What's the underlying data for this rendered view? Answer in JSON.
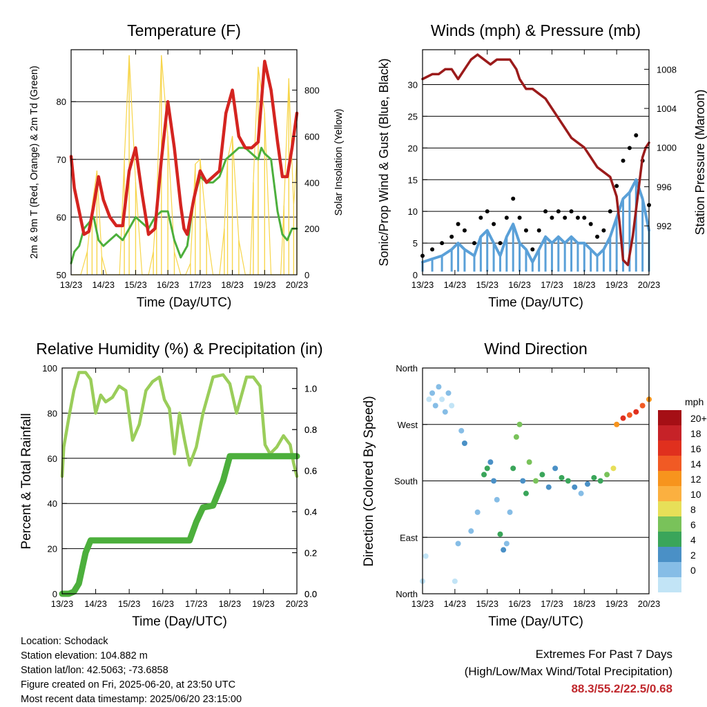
{
  "x_ticks": [
    "13/23",
    "14/23",
    "15/23",
    "16/23",
    "17/23",
    "18/23",
    "19/23",
    "20/23"
  ],
  "xlabel": "Time (Day/UTC)",
  "colors": {
    "temp": "#d42420",
    "dewpoint": "#4caf3c",
    "solar": "#f7d54a",
    "pressure": "#9b1b1b",
    "sonic": "#5aa0d8",
    "gust": "#000000",
    "rh": "#9acd5a",
    "rain": "#4caf3c"
  },
  "chart_data": [
    {
      "type": "line",
      "title": "Temperature (F)",
      "xlabel": "Time (Day/UTC)",
      "ylabel": "2m & 9m T (Red, Orange) & 2m Td (Green)",
      "y2label": "Solar Insolation (Yellow)",
      "yticks": [
        "50",
        "60",
        "70",
        "80"
      ],
      "y2ticks": [
        "0",
        "200",
        "400",
        "600",
        "800"
      ],
      "ylim": [
        50,
        89
      ],
      "y2lim": [
        0,
        975
      ],
      "x": [
        0,
        0.1,
        0.25,
        0.4,
        0.55,
        0.7,
        0.85,
        1.0,
        1.2,
        1.4,
        1.6,
        1.8,
        2.0,
        2.2,
        2.4,
        2.6,
        2.8,
        3.0,
        3.2,
        3.4,
        3.5,
        3.6,
        3.8,
        4.0,
        4.2,
        4.4,
        4.6,
        4.8,
        5.0,
        5.2,
        5.4,
        5.6,
        5.8,
        5.9,
        6.0,
        6.2,
        6.4,
        6.55,
        6.7,
        6.85,
        7.0
      ],
      "series": [
        {
          "values": [
            70.5,
            65,
            61,
            57,
            57.5,
            62,
            67,
            63,
            60,
            58.5,
            58.5,
            68,
            72,
            64,
            57,
            58,
            70,
            80,
            72,
            62,
            58,
            57,
            63,
            68,
            66,
            67,
            68,
            78,
            82,
            74,
            72,
            72,
            73,
            80,
            87,
            82,
            73,
            67,
            67,
            72,
            78
          ]
        },
        {
          "values": [
            52,
            54,
            55,
            58,
            59,
            60,
            56,
            55,
            56,
            57,
            56,
            58,
            60,
            59,
            58,
            60,
            61,
            61,
            56,
            53,
            54,
            55,
            63,
            67,
            66,
            66,
            67,
            70,
            71,
            72,
            72,
            71,
            70,
            72,
            71,
            70,
            61,
            57,
            56,
            58,
            58
          ]
        }
      ],
      "solar": {
        "x": [
          0,
          0.3,
          0.5,
          0.65,
          0.8,
          0.95,
          1.1,
          1.3,
          1.5,
          1.65,
          1.8,
          2.0,
          2.2,
          2.4,
          2.55,
          2.65,
          2.8,
          3.0,
          3.2,
          3.4,
          3.55,
          3.7,
          3.85,
          4.0,
          4.2,
          4.4,
          4.6,
          4.75,
          4.85,
          5.0,
          5.2,
          5.4,
          5.55,
          5.65,
          5.8,
          6.0,
          6.2,
          6.35,
          6.5,
          6.6,
          6.75,
          6.9,
          7.0
        ],
        "values": [
          0,
          0,
          100,
          300,
          450,
          80,
          0,
          0,
          0,
          500,
          950,
          400,
          0,
          0,
          100,
          300,
          950,
          600,
          100,
          0,
          0,
          50,
          480,
          500,
          200,
          0,
          0,
          200,
          500,
          600,
          150,
          0,
          0,
          400,
          900,
          700,
          0,
          0,
          0,
          300,
          850,
          300,
          500
        ]
      }
    },
    {
      "type": "line",
      "title": "Winds (mph) & Pressure (mb)",
      "xlabel": "Time (Day/UTC)",
      "ylabel": "Sonic/Prop Wind & Gust (Blue, Black)",
      "y2label": "Station Pressure (Maroon)",
      "yticks": [
        "0",
        "5",
        "10",
        "15",
        "20",
        "25",
        "30"
      ],
      "y2ticks": [
        "992",
        "996",
        "1000",
        "1004",
        "1008"
      ],
      "ylim": [
        0,
        35.5
      ],
      "y2lim": [
        987,
        1010
      ],
      "x": [
        0,
        0.3,
        0.6,
        0.9,
        1.1,
        1.3,
        1.6,
        1.8,
        2.0,
        2.2,
        2.4,
        2.6,
        2.8,
        3.0,
        3.2,
        3.4,
        3.6,
        3.8,
        4.0,
        4.2,
        4.4,
        4.6,
        4.8,
        5.0,
        5.2,
        5.4,
        5.6,
        5.8,
        6.0,
        6.2,
        6.4,
        6.6,
        6.8,
        7.0
      ],
      "series": [
        {
          "values": [
            2,
            2.5,
            3,
            4,
            5,
            4,
            3,
            6,
            7,
            5,
            3,
            6,
            8,
            5,
            4,
            2,
            4,
            6,
            5,
            6,
            5,
            6,
            5,
            5,
            4,
            3,
            4,
            6,
            9,
            12,
            13,
            15,
            12,
            7
          ]
        },
        {
          "values": [
            3,
            4,
            5,
            6,
            8,
            7,
            5,
            9,
            10,
            8,
            5,
            9,
            12,
            9,
            7,
            4,
            7,
            10,
            9,
            10,
            9,
            10,
            9,
            9,
            8,
            6,
            7,
            10,
            14,
            18,
            20,
            22,
            18,
            11
          ]
        }
      ],
      "pressure": {
        "x": [
          0,
          0.3,
          0.5,
          0.7,
          0.9,
          1.1,
          1.3,
          1.5,
          1.7,
          1.9,
          2.1,
          2.3,
          2.5,
          2.7,
          2.9,
          3.0,
          3.2,
          3.4,
          3.6,
          3.8,
          4.0,
          4.2,
          4.4,
          4.6,
          4.8,
          5.0,
          5.2,
          5.4,
          5.6,
          5.8,
          6.0,
          6.1,
          6.2,
          6.35,
          6.5,
          6.65,
          6.8,
          6.9,
          7.0
        ],
        "values": [
          1007,
          1007.5,
          1007.5,
          1008,
          1008,
          1007,
          1008,
          1009,
          1009.5,
          1009,
          1008.5,
          1009,
          1009,
          1009,
          1008,
          1007,
          1006,
          1006,
          1005.5,
          1005,
          1004,
          1003,
          1002,
          1001,
          1000.5,
          1000,
          999,
          998,
          997.5,
          997,
          995,
          992,
          988.5,
          988,
          991,
          995,
          999,
          1000,
          1000.5
        ]
      }
    },
    {
      "type": "line",
      "title": "Relative Humidity (%) & Precipitation (in)",
      "xlabel": "Time (Day/UTC)",
      "ylabel": "Percent & Total Rainfall",
      "yticks": [
        "0",
        "20",
        "40",
        "60",
        "80",
        "100"
      ],
      "y2ticks": [
        "0.0",
        "0.2",
        "0.4",
        "0.6",
        "0.8",
        "1.0"
      ],
      "ylim": [
        0,
        100
      ],
      "y2lim": [
        0,
        1.1
      ],
      "x": [
        0,
        0.05,
        0.2,
        0.35,
        0.5,
        0.7,
        0.85,
        1.0,
        1.15,
        1.3,
        1.5,
        1.7,
        1.9,
        2.1,
        2.3,
        2.5,
        2.7,
        2.9,
        3.05,
        3.2,
        3.35,
        3.5,
        3.65,
        3.8,
        4.0,
        4.2,
        4.5,
        4.8,
        5.0,
        5.2,
        5.5,
        5.7,
        5.9,
        6.05,
        6.2,
        6.4,
        6.6,
        6.8,
        6.9,
        7.0
      ],
      "series": [
        {
          "values": [
            52,
            65,
            78,
            90,
            98,
            98,
            95,
            80,
            88,
            85,
            87,
            92,
            90,
            68,
            75,
            90,
            94,
            96,
            86,
            82,
            62,
            80,
            68,
            57,
            65,
            80,
            96,
            97,
            93,
            80,
            96,
            96,
            92,
            66,
            62,
            65,
            70,
            66,
            58,
            52
          ]
        },
        {
          "values": [
            0,
            0,
            0,
            0.01,
            0.05,
            0.2,
            0.26,
            0.26,
            0.26,
            0.26,
            0.26,
            0.26,
            0.26,
            0.26,
            0.26,
            0.26,
            0.26,
            0.26,
            0.26,
            0.26,
            0.26,
            0.26,
            0.26,
            0.26,
            0.35,
            0.42,
            0.43,
            0.55,
            0.67,
            0.67,
            0.67,
            0.67,
            0.67,
            0.67,
            0.67,
            0.67,
            0.67,
            0.67,
            0.67,
            0.67
          ]
        }
      ]
    },
    {
      "type": "scatter",
      "title": "Wind Direction",
      "xlabel": "Time (Day/UTC)",
      "ylabel": "Direction (Colored By Speed)",
      "yticks": [
        "North",
        "East",
        "South",
        "West",
        "North"
      ],
      "ylim": [
        0,
        360
      ],
      "x": [
        0,
        0.1,
        0.2,
        0.3,
        0.4,
        0.5,
        0.6,
        0.7,
        0.8,
        0.9,
        1.0,
        1.1,
        1.2,
        1.3,
        1.5,
        1.7,
        1.9,
        2.0,
        2.1,
        2.2,
        2.3,
        2.4,
        2.5,
        2.6,
        2.7,
        2.8,
        2.9,
        3.0,
        3.1,
        3.2,
        3.3,
        3.5,
        3.7,
        3.9,
        4.1,
        4.3,
        4.5,
        4.7,
        4.9,
        5.1,
        5.3,
        5.5,
        5.7,
        5.9,
        6.0,
        6.2,
        6.4,
        6.6,
        6.8,
        7.0
      ],
      "directions": [
        20,
        60,
        310,
        320,
        300,
        330,
        310,
        290,
        320,
        300,
        20,
        80,
        260,
        240,
        100,
        130,
        190,
        200,
        210,
        180,
        150,
        95,
        70,
        80,
        130,
        200,
        250,
        270,
        180,
        160,
        210,
        180,
        190,
        170,
        200,
        185,
        180,
        170,
        160,
        175,
        185,
        180,
        190,
        200,
        270,
        280,
        285,
        290,
        300,
        310
      ],
      "speeds": [
        0,
        1,
        1,
        2,
        2,
        3,
        1,
        2,
        3,
        1,
        0,
        2,
        3,
        4,
        2,
        3,
        6,
        7,
        5,
        4,
        3,
        6,
        5,
        2,
        3,
        6,
        9,
        8,
        5,
        7,
        9,
        8,
        6,
        5,
        4,
        7,
        6,
        5,
        3,
        4,
        6,
        7,
        9,
        11,
        14,
        18,
        17,
        19,
        16,
        15
      ],
      "colorbar": {
        "title": "mph",
        "labels": [
          "20+",
          "18",
          "16",
          "14",
          "12",
          "10",
          "8",
          "6",
          "4",
          "2",
          "0"
        ],
        "colors": [
          "#a50f15",
          "#c62228",
          "#e0301e",
          "#f15a24",
          "#f7941d",
          "#fbb040",
          "#e7df58",
          "#79c25a",
          "#3aa55a",
          "#4a90c6",
          "#86bde6",
          "#c2e4f6"
        ]
      }
    }
  ],
  "info": {
    "location": "Location: Schodack",
    "elevation": "Station elevation: 104.882 m",
    "latlon": "Station lat/lon: 42.5063; -73.6858",
    "created": "Figure created on Fri, 2025-06-20, at 23:50 UTC",
    "timestamp": "Most recent data timestamp: 2025/06/20 23:15:00"
  },
  "extremes": {
    "title": "Extremes For Past 7 Days",
    "subtitle": "(High/Low/Max Wind/Total Precipitation)",
    "values": "88.3/55.2/22.5/0.68"
  }
}
